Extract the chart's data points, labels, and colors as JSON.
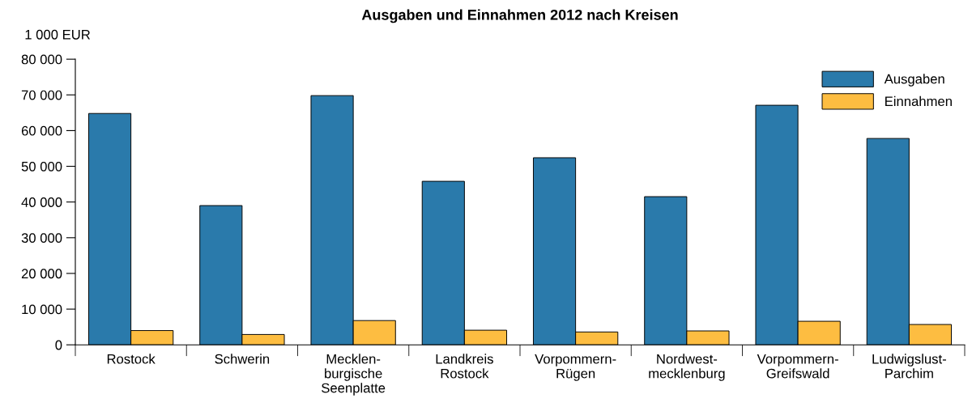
{
  "chart_data": {
    "type": "bar",
    "title": "Ausgaben und Einnahmen 2012 nach Kreisen",
    "ylabel": "1 000 EUR",
    "categories": [
      "Rostock",
      "Schwerin",
      "Mecklen-\nburgische\nSeenplatte",
      "Landkreis\nRostock",
      "Vorpommern-\nRügen",
      "Nordwest-\nmecklenburg",
      "Vorpommern-\nGreifswald",
      "Ludwigslust-\nParchim"
    ],
    "series": [
      {
        "name": "Ausgaben",
        "color": "#2a7aab",
        "values": [
          64800,
          39000,
          69800,
          45800,
          52400,
          41500,
          67100,
          57800
        ]
      },
      {
        "name": "Einnahmen",
        "color": "#fdbd41",
        "values": [
          4000,
          2900,
          6800,
          4100,
          3600,
          3900,
          6600,
          5700
        ]
      }
    ],
    "ylim": [
      0,
      80000
    ],
    "yticks": [
      {
        "value": 0,
        "label": "0"
      },
      {
        "value": 10000,
        "label": "10 000"
      },
      {
        "value": 20000,
        "label": "20 000"
      },
      {
        "value": 30000,
        "label": "30 000"
      },
      {
        "value": 40000,
        "label": "40 000"
      },
      {
        "value": 50000,
        "label": "50 000"
      },
      {
        "value": 60000,
        "label": "60 000"
      },
      {
        "value": 70000,
        "label": "70 000"
      },
      {
        "value": 80000,
        "label": "80 000"
      }
    ],
    "grid": false,
    "legend": "top right"
  }
}
